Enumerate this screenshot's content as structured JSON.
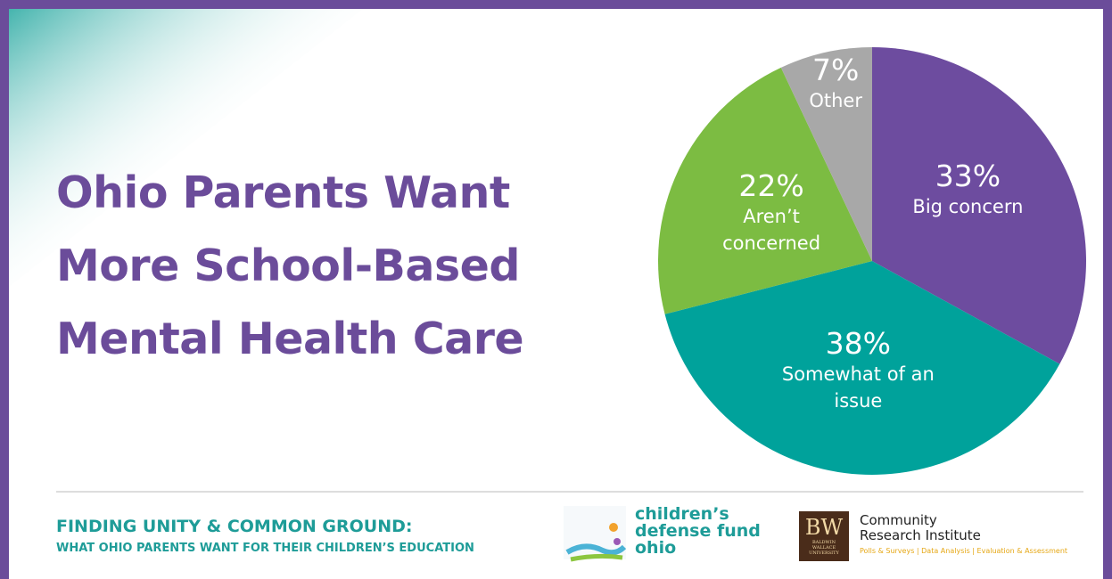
{
  "chart_data": {
    "type": "pie",
    "title": "Ohio Parents Want More School-Based Mental Health Care",
    "categories": [
      "Big concern",
      "Somewhat of an issue",
      "Aren’t concerned",
      "Other"
    ],
    "values": [
      33,
      38,
      22,
      7
    ],
    "value_labels": [
      "33%",
      "38%",
      "22%",
      "7%"
    ],
    "colors": [
      "#6d4c9f",
      "#00a29b",
      "#7cbc42",
      "#a8a8a8"
    ]
  },
  "footer": {
    "heading": "FINDING UNITY & COMMON GROUND:",
    "subheading": "WHAT OHIO PARENTS WANT FOR THEIR CHILDREN’S EDUCATION",
    "cdf_logo": [
      "children’s",
      "defense fund",
      "ohio"
    ],
    "bw_logo": {
      "mark": "BW",
      "university": "BALDWIN WALLACE UNIVERSITY",
      "name": [
        "Community",
        "Research Institute"
      ],
      "tagline": "Polls & Surveys | Data Analysis | Evaluation & Assessment"
    }
  }
}
